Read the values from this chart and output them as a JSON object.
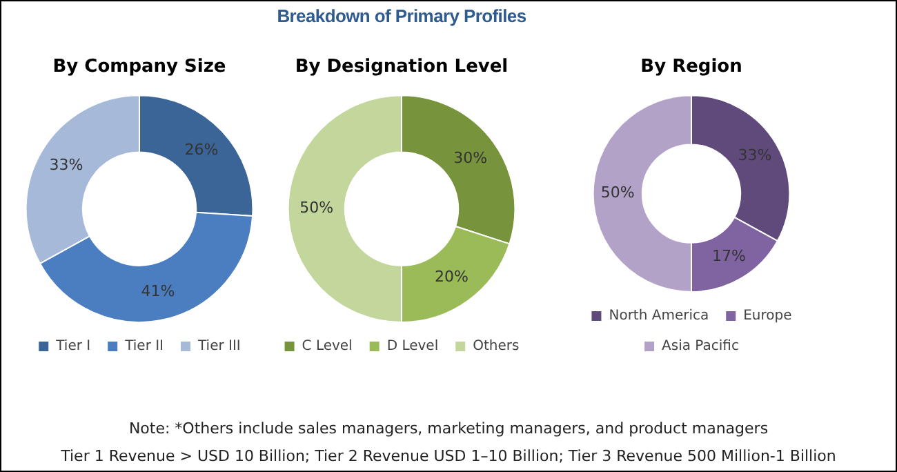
{
  "chart_data": [
    {
      "type": "other",
      "title": "Breakdown of Primary Profiles"
    },
    {
      "type": "donut",
      "title": "By Company Size",
      "categories": [
        "Tier I",
        "Tier II",
        "Tier III"
      ],
      "values": [
        26,
        41,
        33
      ],
      "colors": [
        "#3b6596",
        "#4a7ec0",
        "#a6b9d9"
      ],
      "value_labels": [
        "26%",
        "41%",
        "33%"
      ],
      "legend": "bottom"
    },
    {
      "type": "donut",
      "title": "By Designation Level",
      "categories": [
        "C Level",
        "D Level",
        "Others"
      ],
      "values": [
        30,
        20,
        50
      ],
      "colors": [
        "#77933c",
        "#9bbb59",
        "#c3d69b"
      ],
      "value_labels": [
        "30%",
        "20%",
        "50%"
      ],
      "legend": "bottom"
    },
    {
      "type": "donut",
      "title": "By Region",
      "categories": [
        "North America",
        "Europe",
        "Asia Pacific"
      ],
      "values": [
        33,
        17,
        50
      ],
      "colors": [
        "#604a7b",
        "#8064a2",
        "#b3a2c7"
      ],
      "value_labels": [
        "33%",
        "17%",
        "50%"
      ],
      "legend": "bottom"
    },
    {
      "type": "other",
      "annotations": [
        "Note: *Others include sales managers, marketing managers, and product managers",
        "Tier 1 Revenue > USD 10 Billion; Tier 2 Revenue USD 1–10 Billion; Tier 3 Revenue 500 Million-1 Billion"
      ]
    }
  ]
}
